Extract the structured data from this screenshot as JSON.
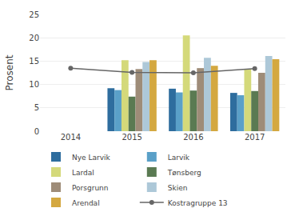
{
  "chart_data": {
    "type": "bar",
    "categories": [
      "2014",
      "2015",
      "2016",
      "2017"
    ],
    "series": [
      {
        "name": "Nye Larvik",
        "color": "#2e6d9e",
        "values": [
          null,
          9.2,
          9.1,
          8.2
        ]
      },
      {
        "name": "Larvik",
        "color": "#5aa0c8",
        "values": [
          null,
          8.8,
          8.3,
          7.7
        ]
      },
      {
        "name": "Lardal",
        "color": "#d4d97a",
        "values": [
          null,
          15.2,
          20.5,
          13.3
        ]
      },
      {
        "name": "Tønsberg",
        "color": "#5a7a52",
        "values": [
          null,
          7.4,
          8.7,
          8.6
        ]
      },
      {
        "name": "Porsgrunn",
        "color": "#9e8c78",
        "values": [
          null,
          13.3,
          13.5,
          12.5
        ]
      },
      {
        "name": "Skien",
        "color": "#adc8d8",
        "values": [
          null,
          14.8,
          15.7,
          16.1
        ]
      },
      {
        "name": "Arendal",
        "color": "#d4a840",
        "values": [
          null,
          15.2,
          14.0,
          15.4
        ]
      },
      {
        "name": "Kostragruppe 13",
        "type": "line",
        "color": "#666666",
        "marker": "circle",
        "values": [
          13.5,
          12.6,
          12.5,
          13.4
        ]
      }
    ],
    "ylabel": "Prosent",
    "ylim": [
      0,
      25
    ],
    "yticks": [
      0,
      5,
      10,
      15,
      20,
      25
    ],
    "grid": true,
    "legend": "bottom"
  }
}
